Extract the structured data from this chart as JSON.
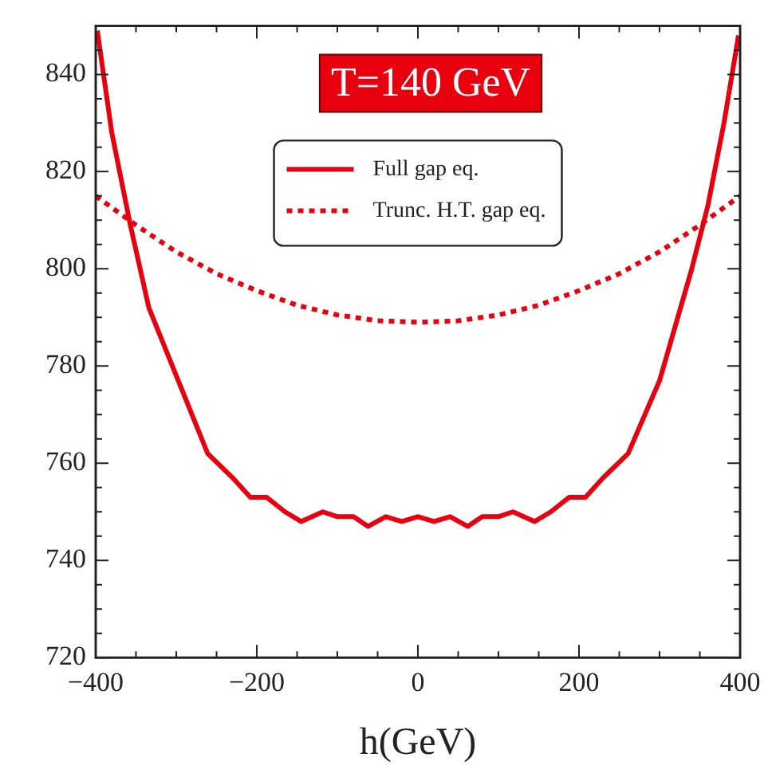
{
  "chart_data": {
    "type": "line",
    "xlabel": "h(GeV)",
    "annotations": [
      "T=140 GeV"
    ],
    "legend": "top",
    "marker": "none",
    "grid": false,
    "xlim": [
      -400,
      400
    ],
    "xticks": [
      -400,
      -200,
      0,
      200,
      400
    ],
    "ylim": [
      720,
      850
    ],
    "yticks": [
      720,
      740,
      760,
      780,
      800,
      820,
      840
    ],
    "series": [
      {
        "name": "Full gap eq.",
        "color": "#e8000f",
        "line_style": "solid",
        "x": [
          -398,
          -380,
          -357,
          -334,
          -300,
          -261,
          -230,
          -208,
          -188,
          -165,
          -145,
          -118,
          -100,
          -80,
          -62,
          -40,
          -20,
          0,
          20,
          40,
          62,
          80,
          100,
          118,
          145,
          165,
          188,
          208,
          230,
          261,
          300,
          340,
          360,
          380,
          398
        ],
        "values": [
          849,
          828,
          809,
          792,
          778,
          762,
          757,
          753,
          753,
          750,
          748,
          750,
          749,
          749,
          747,
          749,
          748,
          749,
          748,
          749,
          747,
          749,
          749,
          750,
          748,
          750,
          753,
          753,
          757,
          762,
          777,
          800,
          813,
          830,
          848
        ]
      },
      {
        "name": "Trunc. H.T. gap eq.",
        "color": "#e8000f",
        "line_style": "dotted",
        "x": [
          -400,
          -350,
          -300,
          -250,
          -200,
          -150,
          -100,
          -50,
          0,
          50,
          100,
          150,
          200,
          250,
          300,
          350,
          400
        ],
        "values": [
          815,
          809,
          803.5,
          799,
          795.5,
          792.5,
          790.5,
          789.3,
          789,
          789.3,
          790.5,
          792.5,
          795.5,
          799,
          803.5,
          809,
          815
        ]
      }
    ]
  }
}
